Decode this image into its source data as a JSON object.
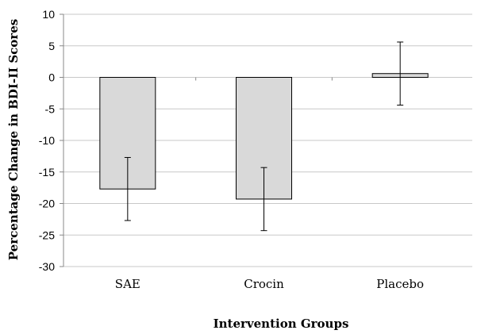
{
  "chart_data": {
    "type": "bar",
    "title": "",
    "xlabel": "Intervention Groups",
    "ylabel": "Percentage Change in BDI-II Scores",
    "categories": [
      "SAE",
      "Crocin",
      "Placebo"
    ],
    "series": [
      {
        "values": [
          -17.7,
          -19.3,
          0.6
        ],
        "error": [
          5.0,
          5.0,
          5.0
        ]
      }
    ],
    "ylim": [
      -30,
      10
    ],
    "yticks": [
      10,
      5,
      0,
      -5,
      -10,
      -15,
      -20,
      -25,
      -30
    ],
    "grid": true,
    "legend": "none",
    "colors": {
      "bar_fill": "#d9d9d9",
      "bar_stroke": "#000000",
      "grid": "#c8c8c8"
    }
  }
}
